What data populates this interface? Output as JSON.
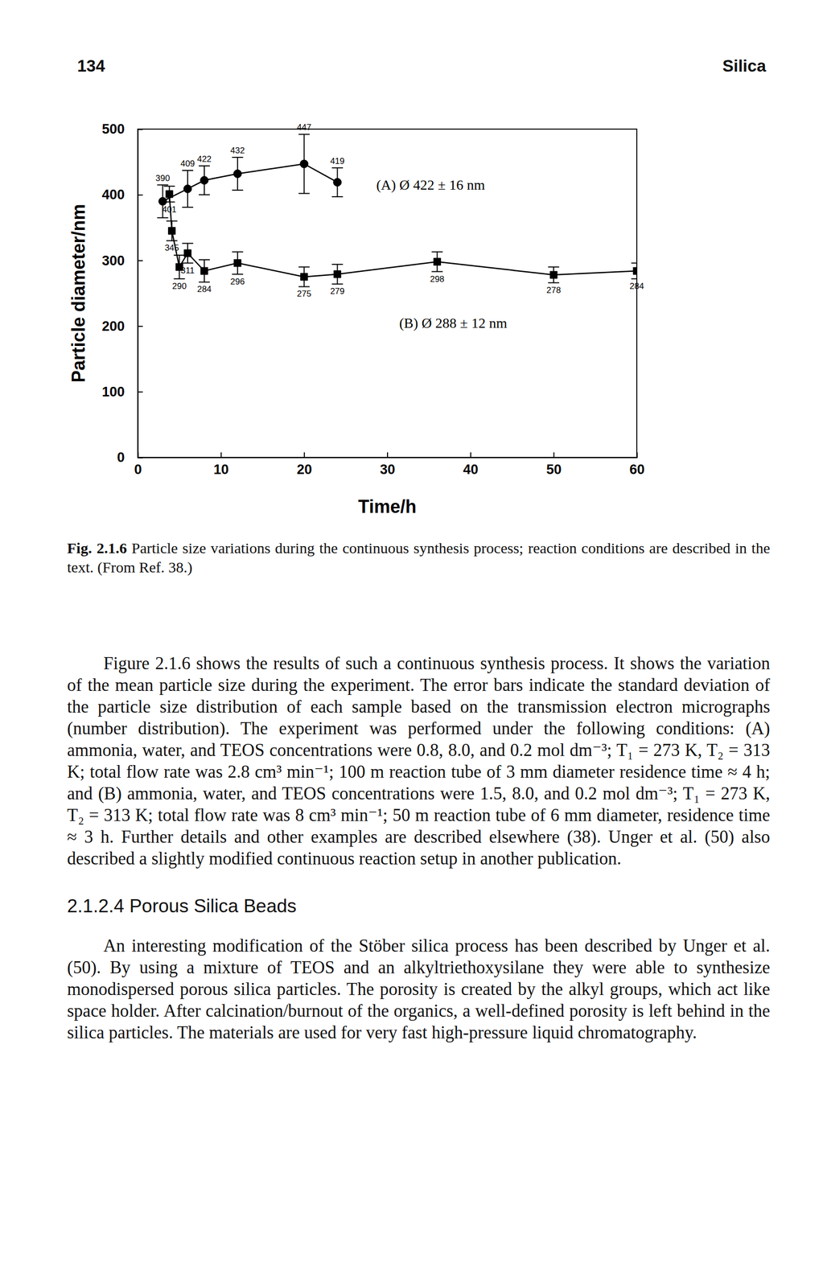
{
  "header": {
    "page_number": "134",
    "running_title": "Silica"
  },
  "chart_data": {
    "type": "line",
    "x_label": "Time/h",
    "y_label": "Particle diameter/nm",
    "xlim": [
      0,
      60
    ],
    "ylim": [
      0,
      500
    ],
    "xticks": [
      0,
      10,
      20,
      30,
      40,
      50,
      60
    ],
    "yticks": [
      0,
      100,
      200,
      300,
      400,
      500
    ],
    "data_labels": true,
    "series": [
      {
        "name": "(A) Ø 422 ± 16 nm",
        "color": "#000000",
        "marker": "circle",
        "line_style": "solid",
        "x": [
          3,
          6,
          8,
          12,
          20,
          24
        ],
        "values": [
          390,
          409,
          422,
          432,
          447,
          419
        ],
        "errors": [
          25,
          28,
          22,
          25,
          45,
          22
        ]
      },
      {
        "name": "(B) Ø 288 ± 12 nm",
        "color": "#000000",
        "marker": "square",
        "line_style": "solid",
        "x": [
          3.8,
          4.1,
          5,
          6,
          8,
          12,
          20,
          24,
          36,
          50,
          60
        ],
        "values": [
          401,
          345,
          290,
          311,
          284,
          296,
          275,
          279,
          298,
          278,
          284
        ],
        "errors": [
          12,
          15,
          18,
          15,
          17,
          17,
          15,
          15,
          15,
          12,
          12
        ]
      }
    ]
  },
  "figure": {
    "label": "Fig. 2.1.6",
    "caption": "Particle size variations during the continuous synthesis process; reaction conditions are described in the text. (From Ref. 38.)"
  },
  "body": [
    {
      "type": "paragraph",
      "text": "Figure 2.1.6 shows the results of such a continuous synthesis process. It shows the variation of the mean particle size during the experiment. The error bars indicate the standard deviation of the particle size distribution of each sample based on the transmission electron micrographs (number distribution). The experiment was performed under the following conditions: (A) ammonia, water, and TEOS concentrations were 0.8, 8.0, and 0.2 mol dm⁻³; T₁ = 273 K, T₂ = 313 K; total flow rate was 2.8 cm³ min⁻¹; 100 m reaction tube of 3 mm diameter residence time ≈ 4 h; and (B) ammonia, water, and TEOS concentrations were 1.5, 8.0, and 0.2 mol dm⁻³; T₁ = 273 K, T₂ = 313 K; total flow rate was 8 cm³ min⁻¹; 50 m reaction tube of 6 mm diameter, residence time ≈ 3 h. Further details and other examples are described elsewhere (38). Unger et al. (50) also described a slightly modified continuous reaction setup in another publication."
    },
    {
      "type": "heading",
      "text": "2.1.2.4 Porous Silica Beads"
    },
    {
      "type": "paragraph",
      "text": "An interesting modification of the Stöber silica process has been described by Unger et al. (50). By using a mixture of TEOS and an alkyltriethoxysilane they were able to synthesize monodispersed porous silica particles. The porosity is created by the alkyl groups, which act like space holder. After calcination/burnout of the organics, a well-defined porosity is left behind in the silica particles. The materials are used for very fast high-pressure liquid chromatography."
    }
  ]
}
